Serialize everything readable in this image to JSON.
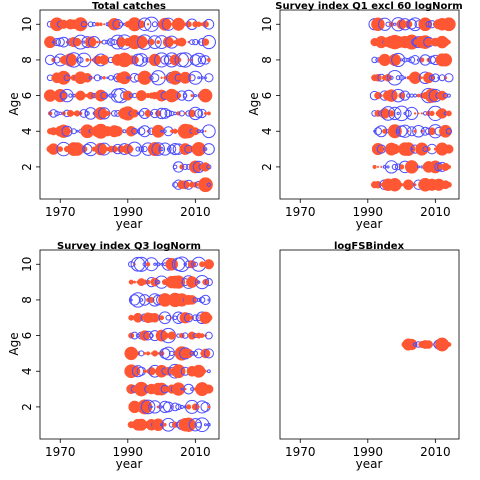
{
  "colors": {
    "positive": "#4d4dff",
    "negative": "#ff5733"
  },
  "chart_data": [
    {
      "type": "scatter",
      "title": "Total catches",
      "xlabel": "year",
      "ylabel": "Age",
      "xlim": [
        1964,
        2017
      ],
      "ylim": [
        0.2,
        10.8
      ],
      "xticks": [
        1970,
        1990,
        2010
      ],
      "yticks": [
        2,
        4,
        6,
        8,
        10
      ],
      "years": [
        1967,
        2014
      ],
      "age_ranges": [
        [
          3,
          10
        ],
        [
          3,
          10
        ],
        [
          3,
          10
        ],
        [
          3,
          10
        ],
        [
          3,
          10
        ],
        [
          3,
          10
        ],
        [
          3,
          10
        ],
        [
          3,
          10
        ],
        [
          3,
          10
        ],
        [
          3,
          10
        ],
        [
          3,
          10
        ],
        [
          3,
          10
        ],
        [
          3,
          10
        ],
        [
          3,
          10
        ],
        [
          3,
          10
        ],
        [
          3,
          10
        ],
        [
          3,
          10
        ],
        [
          3,
          10
        ],
        [
          3,
          10
        ],
        [
          3,
          10
        ],
        [
          3,
          10
        ],
        [
          3,
          10
        ],
        [
          3,
          10
        ],
        [
          3,
          10
        ],
        [
          3,
          10
        ],
        [
          3,
          10
        ],
        [
          3,
          10
        ],
        [
          3,
          10
        ],
        [
          3,
          10
        ],
        [
          3,
          10
        ],
        [
          3,
          10
        ],
        [
          3,
          10
        ],
        [
          3,
          10
        ],
        [
          3,
          10
        ],
        [
          3,
          10
        ],
        [
          3,
          10
        ],
        [
          3,
          10
        ],
        [
          1,
          10
        ],
        [
          1,
          10
        ],
        [
          1,
          10
        ],
        [
          1,
          10
        ],
        [
          1,
          10
        ],
        [
          1,
          10
        ],
        [
          1,
          10
        ],
        [
          1,
          10
        ],
        [
          1,
          10
        ],
        [
          1,
          10
        ],
        [
          1,
          10
        ]
      ],
      "seed": 11,
      "show_y_axis": true
    },
    {
      "type": "scatter",
      "title": "Survey index Q1 excl 60 logNorm",
      "xlabel": "year",
      "ylabel": "Age",
      "xlim": [
        1964,
        2017
      ],
      "ylim": [
        0.2,
        10.8
      ],
      "xticks": [
        1970,
        1990,
        2010
      ],
      "yticks": [
        2,
        4,
        6,
        8,
        10
      ],
      "years": [
        1992,
        2014
      ],
      "age_ranges": [
        [
          1,
          10
        ]
      ],
      "seed": 23,
      "show_y_axis": true
    },
    {
      "type": "scatter",
      "title": "Survey index Q3 logNorm",
      "xlabel": "year",
      "ylabel": "Age",
      "xlim": [
        1964,
        2017
      ],
      "ylim": [
        0.2,
        10.8
      ],
      "xticks": [
        1970,
        1990,
        2010
      ],
      "yticks": [
        2,
        4,
        6,
        8,
        10
      ],
      "years": [
        1991,
        2014
      ],
      "age_ranges": [
        [
          1,
          10
        ]
      ],
      "seed": 37,
      "show_y_axis": true
    },
    {
      "type": "scatter",
      "title": "logFSBindex",
      "xlabel": "year",
      "ylabel": "",
      "xlim": [
        1964,
        2017
      ],
      "ylim": [
        0.2,
        10.8
      ],
      "xticks": [
        1970,
        1990,
        2010
      ],
      "yticks": [],
      "years": [
        2001,
        2014
      ],
      "age_ranges": [
        [
          5.5,
          5.5
        ]
      ],
      "seed": 53,
      "show_y_axis": false
    }
  ]
}
